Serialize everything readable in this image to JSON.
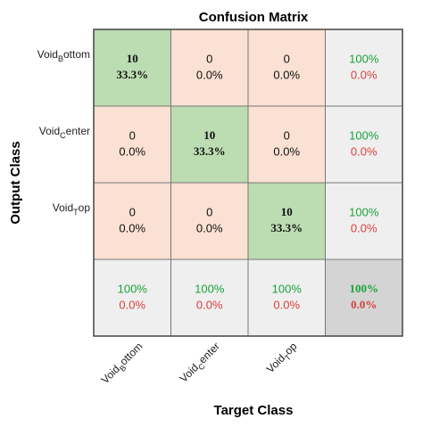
{
  "title": "Confusion Matrix",
  "x_label": "Target Class",
  "y_label": "Output Class",
  "classes": [
    {
      "main": "Void",
      "sub": "B",
      "rest": "ottom"
    },
    {
      "main": "Void",
      "sub": "C",
      "rest": "enter"
    },
    {
      "main": "Void",
      "sub": "T",
      "rest": "op"
    }
  ],
  "cells": [
    [
      [
        "10",
        "33.3%"
      ],
      [
        "0",
        "0.0%"
      ],
      [
        "0",
        "0.0%"
      ]
    ],
    [
      [
        "0",
        "0.0%"
      ],
      [
        "10",
        "33.3%"
      ],
      [
        "0",
        "0.0%"
      ]
    ],
    [
      [
        "0",
        "0.0%"
      ],
      [
        "0",
        "0.0%"
      ],
      [
        "10",
        "33.3%"
      ]
    ]
  ],
  "row_summary": [
    [
      "100%",
      "0.0%"
    ],
    [
      "100%",
      "0.0%"
    ],
    [
      "100%",
      "0.0%"
    ]
  ],
  "col_summary": [
    [
      "100%",
      "0.0%"
    ],
    [
      "100%",
      "0.0%"
    ],
    [
      "100%",
      "0.0%"
    ]
  ],
  "overall": [
    "100%",
    "0.0%"
  ]
}
